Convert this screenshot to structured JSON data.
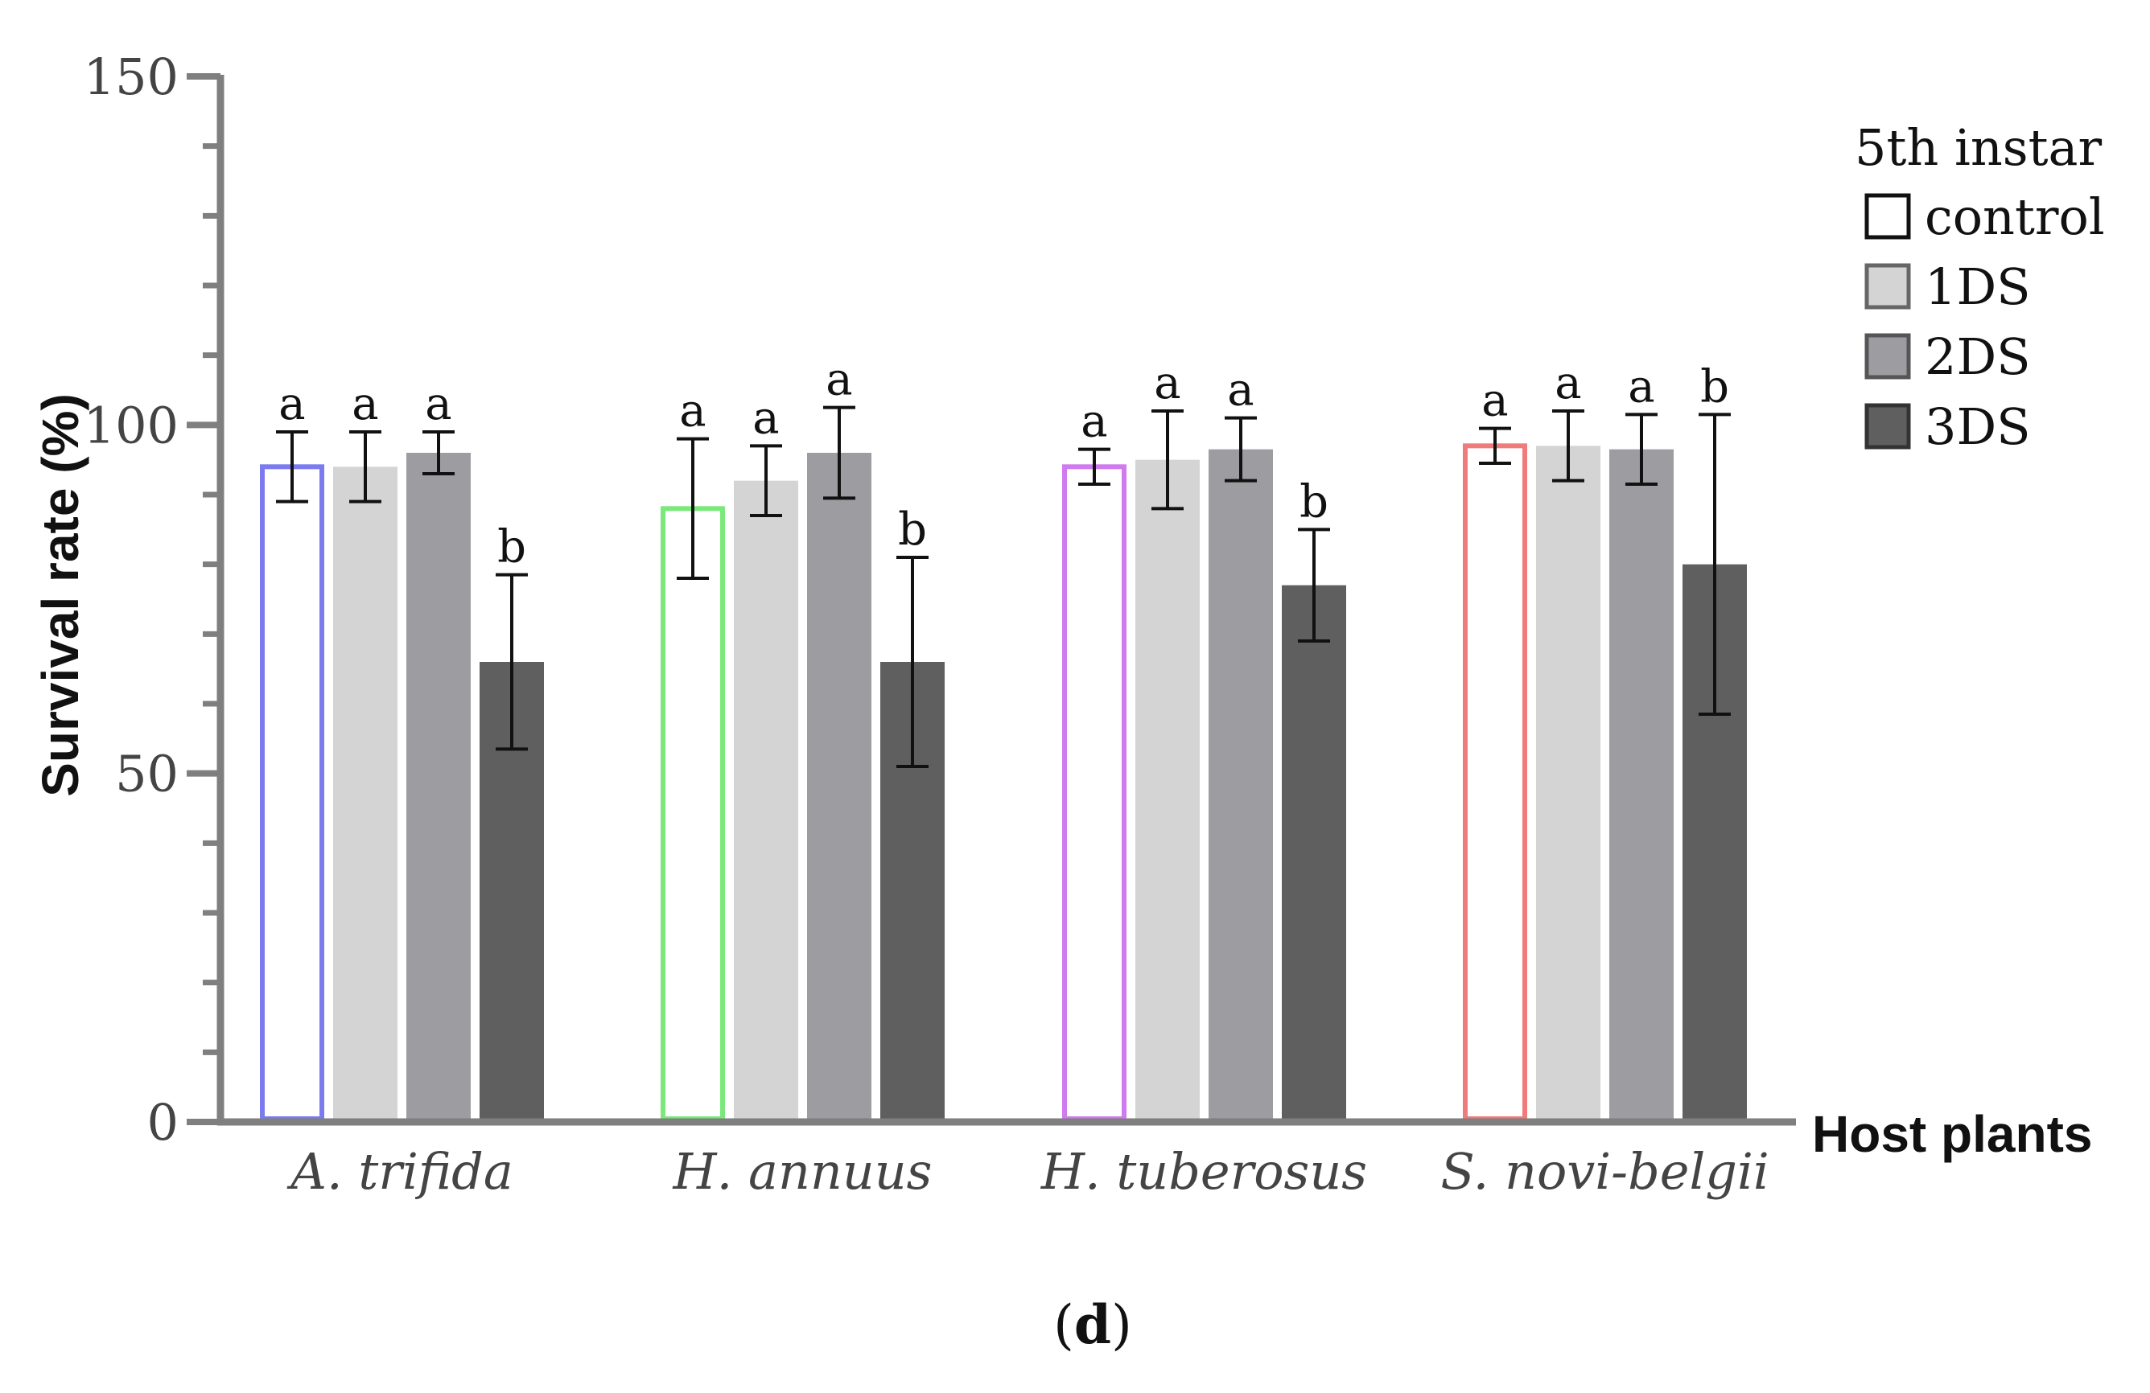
{
  "chart_data": {
    "type": "bar",
    "ylabel": "Survival rate (%)",
    "xlabel": "Host plants",
    "ylim": [
      0,
      150
    ],
    "y_ticks": [
      "0",
      "50",
      "100",
      "150"
    ],
    "minor_step": 10,
    "caption_open": "(",
    "caption_letter": "d",
    "caption_close": ")",
    "categories": [
      "A. trifida",
      "H. annuus",
      "H. tuberosus",
      "S. novi-belgii"
    ],
    "control_outline_colors": [
      "#7b7bef",
      "#7be87b",
      "#cf7bef",
      "#f07b7b"
    ],
    "legend_title": "5th instar",
    "series": [
      {
        "name": "control",
        "color": "#ffffff",
        "legend_border": "#111111",
        "values": [
          94,
          88,
          94,
          97
        ],
        "errors": [
          5,
          10,
          2.5,
          2.5
        ],
        "labels": [
          "a",
          "a",
          "a",
          "a"
        ]
      },
      {
        "name": "1DS",
        "color": "#d4d4d4",
        "legend_border": "#666666",
        "values": [
          94,
          92,
          95,
          97
        ],
        "errors": [
          5,
          5,
          7,
          5
        ],
        "labels": [
          "a",
          "a",
          "a",
          "a"
        ]
      },
      {
        "name": "2DS",
        "color": "#9d9ca1",
        "legend_border": "#555555",
        "values": [
          96,
          96,
          96.5,
          96.5
        ],
        "errors": [
          3,
          6.5,
          4.5,
          5
        ],
        "labels": [
          "a",
          "a",
          "a",
          "a"
        ]
      },
      {
        "name": "3DS",
        "color": "#5f5f5f",
        "legend_border": "#333333",
        "values": [
          66,
          66,
          77,
          80
        ],
        "errors": [
          12.5,
          15,
          8,
          21.5
        ],
        "labels": [
          "b",
          "b",
          "b",
          "b"
        ]
      }
    ]
  }
}
